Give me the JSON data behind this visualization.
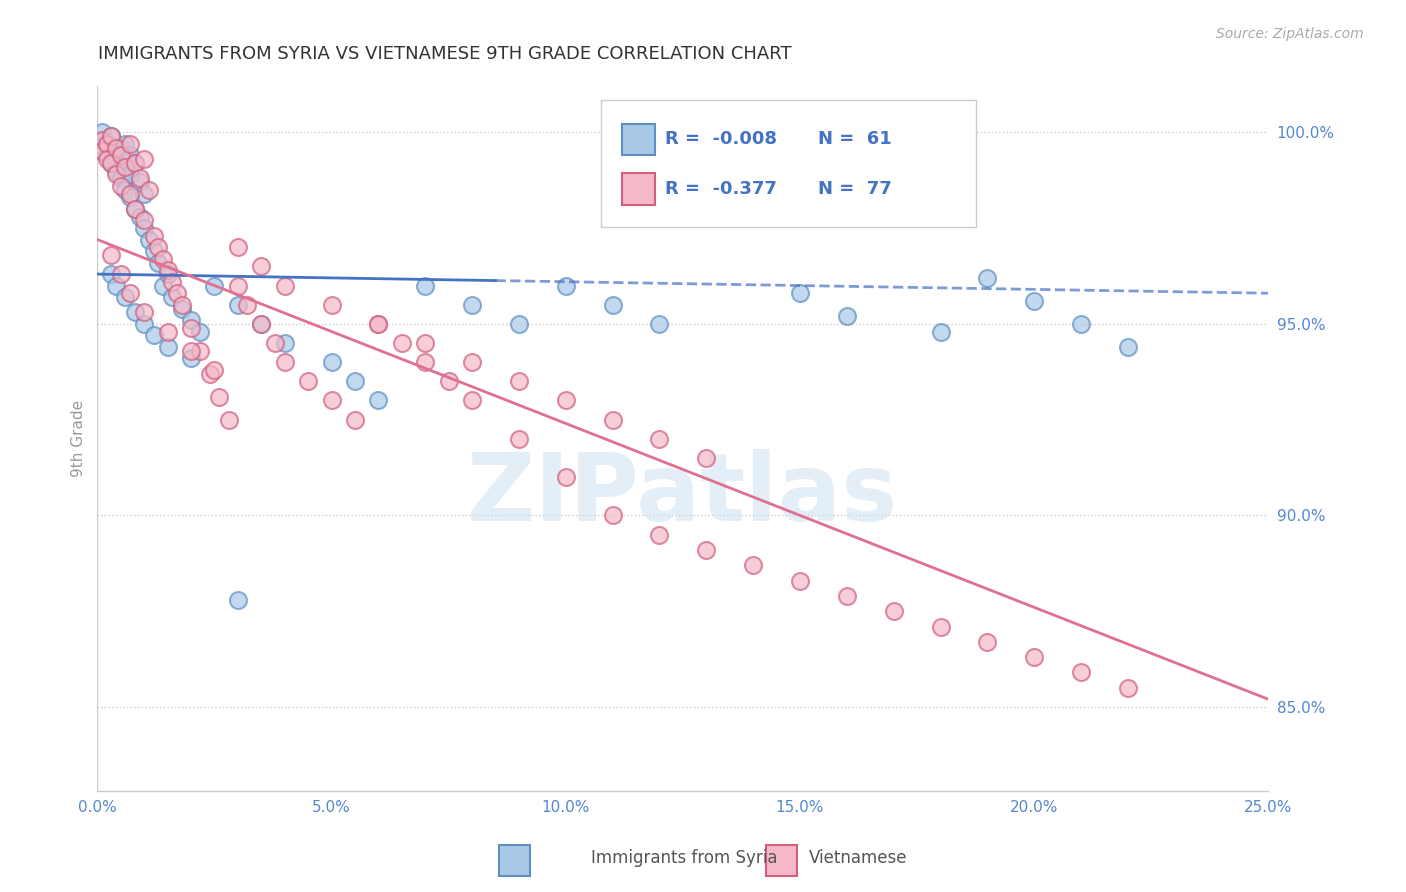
{
  "title": "IMMIGRANTS FROM SYRIA VS VIETNAMESE 9TH GRADE CORRELATION CHART",
  "source": "Source: ZipAtlas.com",
  "ylabel": "9th Grade",
  "xlim": [
    0.0,
    0.25
  ],
  "ylim": [
    0.828,
    1.012
  ],
  "xticks": [
    0.0,
    0.05,
    0.1,
    0.15,
    0.2,
    0.25
  ],
  "xtick_labels": [
    "0.0%",
    "5.0%",
    "10.0%",
    "15.0%",
    "20.0%",
    "25.0%"
  ],
  "yticks": [
    0.85,
    0.9,
    0.95,
    1.0
  ],
  "ytick_labels": [
    "85.0%",
    "90.0%",
    "95.0%",
    "100.0%"
  ],
  "legend_R1": "-0.008",
  "legend_N1": "61",
  "legend_R2": "-0.377",
  "legend_N2": "77",
  "color_syria": "#a8c8e8",
  "color_vietnamese": "#f4b8c8",
  "color_syria_edge": "#6090c0",
  "color_vietnamese_edge": "#d06080",
  "color_syria_line": "#4472c4",
  "color_vietnamese_line": "#e07090",
  "watermark_text": "ZIPatlas",
  "syria_x": [
    0.001,
    0.001,
    0.002,
    0.002,
    0.003,
    0.003,
    0.003,
    0.004,
    0.004,
    0.005,
    0.005,
    0.005,
    0.006,
    0.006,
    0.007,
    0.007,
    0.007,
    0.008,
    0.008,
    0.009,
    0.009,
    0.01,
    0.01,
    0.011,
    0.012,
    0.013,
    0.014,
    0.015,
    0.016,
    0.018,
    0.02,
    0.022,
    0.025,
    0.03,
    0.035,
    0.04,
    0.05,
    0.055,
    0.06,
    0.07,
    0.08,
    0.09,
    0.1,
    0.11,
    0.12,
    0.15,
    0.16,
    0.18,
    0.19,
    0.2,
    0.21,
    0.22,
    0.003,
    0.004,
    0.006,
    0.008,
    0.01,
    0.012,
    0.015,
    0.02,
    0.03
  ],
  "syria_y": [
    0.998,
    1.0,
    0.997,
    0.994,
    0.999,
    0.995,
    0.992,
    0.993,
    0.99,
    0.996,
    0.991,
    0.988,
    0.997,
    0.985,
    0.994,
    0.989,
    0.983,
    0.992,
    0.98,
    0.987,
    0.978,
    0.984,
    0.975,
    0.972,
    0.969,
    0.966,
    0.96,
    0.963,
    0.957,
    0.954,
    0.951,
    0.948,
    0.96,
    0.955,
    0.95,
    0.945,
    0.94,
    0.935,
    0.93,
    0.96,
    0.955,
    0.95,
    0.96,
    0.955,
    0.95,
    0.958,
    0.952,
    0.948,
    0.962,
    0.956,
    0.95,
    0.944,
    0.963,
    0.96,
    0.957,
    0.953,
    0.95,
    0.947,
    0.944,
    0.941,
    0.878
  ],
  "vietnamese_x": [
    0.001,
    0.001,
    0.002,
    0.002,
    0.003,
    0.003,
    0.004,
    0.004,
    0.005,
    0.005,
    0.006,
    0.007,
    0.007,
    0.008,
    0.008,
    0.009,
    0.01,
    0.01,
    0.011,
    0.012,
    0.013,
    0.014,
    0.015,
    0.016,
    0.017,
    0.018,
    0.02,
    0.022,
    0.024,
    0.026,
    0.028,
    0.03,
    0.032,
    0.035,
    0.038,
    0.04,
    0.045,
    0.05,
    0.055,
    0.06,
    0.065,
    0.07,
    0.075,
    0.08,
    0.09,
    0.1,
    0.11,
    0.12,
    0.13,
    0.14,
    0.15,
    0.16,
    0.17,
    0.18,
    0.19,
    0.2,
    0.21,
    0.22,
    0.003,
    0.005,
    0.007,
    0.01,
    0.015,
    0.02,
    0.025,
    0.03,
    0.035,
    0.04,
    0.05,
    0.06,
    0.07,
    0.08,
    0.09,
    0.1,
    0.11,
    0.12,
    0.13
  ],
  "vietnamese_y": [
    0.998,
    0.995,
    0.997,
    0.993,
    0.999,
    0.992,
    0.996,
    0.989,
    0.994,
    0.986,
    0.991,
    0.997,
    0.984,
    0.992,
    0.98,
    0.988,
    0.993,
    0.977,
    0.985,
    0.973,
    0.97,
    0.967,
    0.964,
    0.961,
    0.958,
    0.955,
    0.949,
    0.943,
    0.937,
    0.931,
    0.925,
    0.96,
    0.955,
    0.95,
    0.945,
    0.94,
    0.935,
    0.93,
    0.925,
    0.95,
    0.945,
    0.94,
    0.935,
    0.93,
    0.92,
    0.91,
    0.9,
    0.895,
    0.891,
    0.887,
    0.883,
    0.879,
    0.875,
    0.871,
    0.867,
    0.863,
    0.859,
    0.855,
    0.968,
    0.963,
    0.958,
    0.953,
    0.948,
    0.943,
    0.938,
    0.97,
    0.965,
    0.96,
    0.955,
    0.95,
    0.945,
    0.94,
    0.935,
    0.93,
    0.925,
    0.92,
    0.915
  ],
  "syria_line_x": [
    0.0,
    0.25
  ],
  "syria_line_y": [
    0.963,
    0.958
  ],
  "viet_line_x": [
    0.0,
    0.25
  ],
  "viet_line_y": [
    0.972,
    0.852
  ]
}
